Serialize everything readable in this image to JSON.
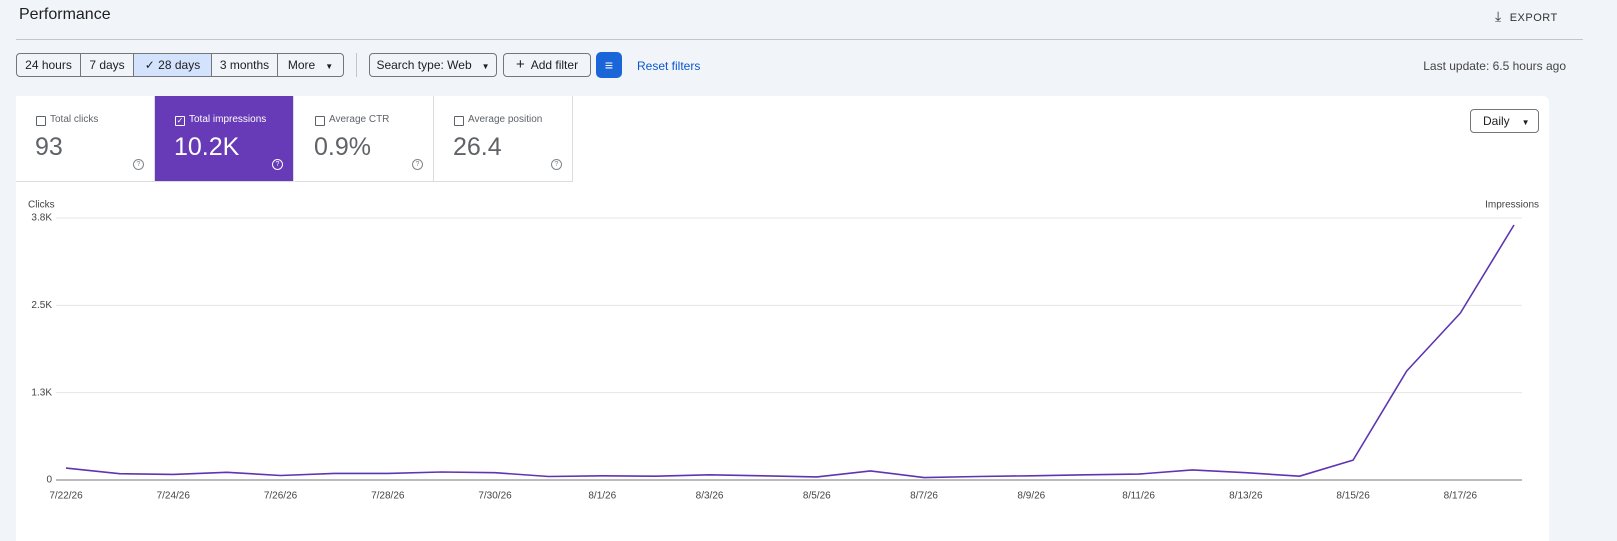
{
  "header": {
    "title": "Performance",
    "export": "EXPORT"
  },
  "filters": {
    "ranges": [
      "24 hours",
      "7 days",
      "28 days",
      "3 months",
      "More"
    ],
    "search_type": "Search type: Web",
    "add_filter": "Add filter",
    "reset": "Reset filters"
  },
  "last_update": "Last update: 6.5 hours ago",
  "metrics": [
    {
      "label": "Total clicks",
      "value": "93"
    },
    {
      "label": "Total impressions",
      "value": "10.2K"
    },
    {
      "label": "Average CTR",
      "value": "0.9%"
    },
    {
      "label": "Average position",
      "value": "26.4"
    }
  ],
  "granularity": "Daily",
  "chart_data": {
    "type": "line",
    "y_label": "Clicks",
    "y2_label": "Impressions",
    "color": "#5e35b1",
    "grid": true,
    "categories": [
      "7/22/26",
      null,
      "7/24/26",
      null,
      "7/26/26",
      null,
      "7/28/26",
      null,
      "7/30/26",
      null,
      "8/1/26",
      null,
      "8/3/26",
      null,
      "8/5/26",
      null,
      "8/7/26",
      null,
      "8/9/26",
      null,
      "8/11/26",
      null,
      "8/13/26",
      null,
      "8/15/26",
      null,
      "8/17/26",
      null
    ],
    "values": [
      170,
      90,
      80,
      110,
      65,
      95,
      95,
      115,
      105,
      50,
      60,
      55,
      75,
      60,
      45,
      130,
      35,
      50,
      60,
      75,
      85,
      145,
      105,
      55,
      285,
      1560,
      2390,
      3650
    ],
    "ylim": [
      0,
      3750
    ],
    "yticks": [
      0,
      {
        "value": 1250,
        "label": "1.3K"
      },
      {
        "value": 2500,
        "label": "2.5K"
      },
      {
        "value": 3750,
        "label": "3.8K"
      }
    ]
  }
}
